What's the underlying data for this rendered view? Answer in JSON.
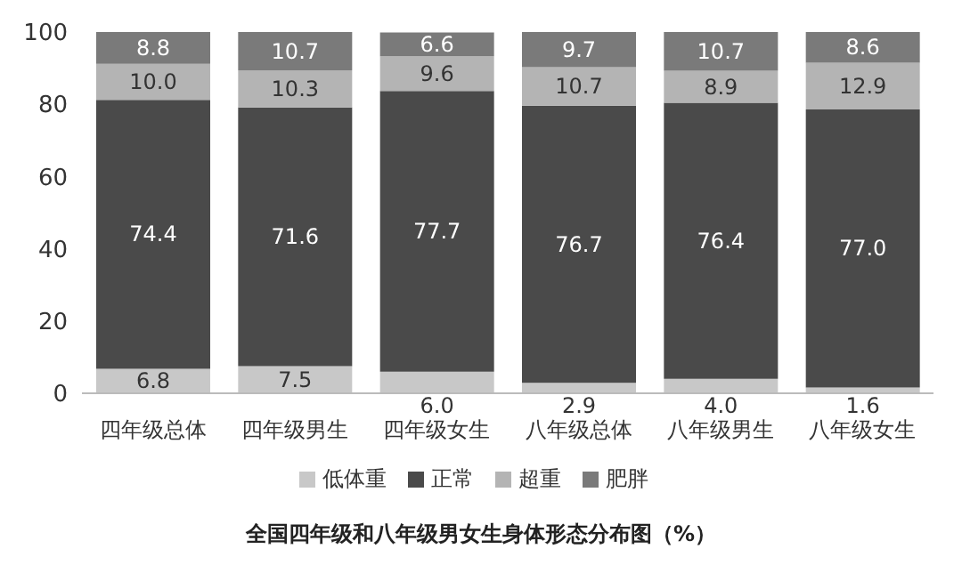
{
  "chart_data": {
    "type": "bar",
    "stacked": true,
    "title": "全国四年级和八年级男女生身体形态分布图（%）",
    "categories": [
      "四年级总体",
      "四年级男生",
      "四年级女生",
      "八年级总体",
      "八年级男生",
      "八年级女生"
    ],
    "series": [
      {
        "name": "低体重",
        "color": "#c8c8c8",
        "values": [
          6.8,
          7.5,
          6.0,
          2.9,
          4.0,
          1.6
        ],
        "value_labels": [
          "6.8",
          "7.5",
          "6.0",
          "2.9",
          "4.0",
          "1.6"
        ]
      },
      {
        "name": "正常",
        "color": "#4a4a4a",
        "values": [
          74.4,
          71.6,
          77.7,
          76.7,
          76.4,
          77.0
        ],
        "value_labels": [
          "74.4",
          "71.6",
          "77.7",
          "76.7",
          "76.4",
          "77.0"
        ]
      },
      {
        "name": "超重",
        "color": "#b4b4b4",
        "values": [
          10.0,
          10.3,
          9.6,
          10.7,
          8.9,
          12.9
        ],
        "value_labels": [
          "10.0",
          "10.3",
          "9.6",
          "10.7",
          "8.9",
          "12.9"
        ]
      },
      {
        "name": "肥胖",
        "color": "#7a7a7a",
        "values": [
          8.8,
          10.7,
          6.6,
          9.7,
          10.7,
          8.6
        ],
        "value_labels": [
          "8.8",
          "10.7",
          "6.6",
          "9.7",
          "10.7",
          "8.6"
        ]
      }
    ],
    "ylim": [
      0,
      100
    ],
    "yticks": [
      0,
      20,
      40,
      60,
      80,
      100
    ],
    "grid": false,
    "legend": "bottom"
  }
}
